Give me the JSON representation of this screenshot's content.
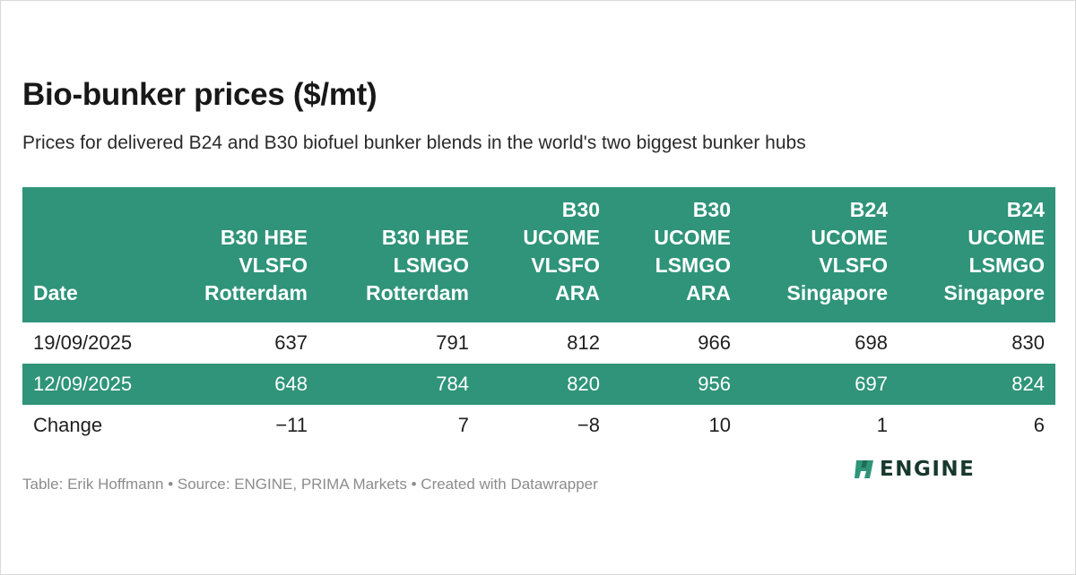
{
  "header": {
    "title": "Bio-bunker prices ($/mt)",
    "subtitle": "Prices for delivered B24 and B30 biofuel bunker blends in the world's two biggest bunker hubs"
  },
  "chart_data": {
    "type": "table",
    "columns": [
      {
        "lines": [
          "Date"
        ]
      },
      {
        "lines": [
          "B30 HBE",
          "VLSFO",
          "Rotterdam"
        ]
      },
      {
        "lines": [
          "B30 HBE",
          "LSMGO",
          "Rotterdam"
        ]
      },
      {
        "lines": [
          "B30",
          "UCOME",
          "VLSFO",
          "ARA"
        ]
      },
      {
        "lines": [
          "B30",
          "UCOME",
          "LSMGO",
          "ARA"
        ]
      },
      {
        "lines": [
          "B24",
          "UCOME",
          "VLSFO",
          "Singapore"
        ]
      },
      {
        "lines": [
          "B24",
          "UCOME",
          "LSMGO",
          "Singapore"
        ]
      }
    ],
    "rows": [
      {
        "label": "19/09/2025",
        "values": [
          "637",
          "791",
          "812",
          "966",
          "698",
          "830"
        ]
      },
      {
        "label": "12/09/2025",
        "values": [
          "648",
          "784",
          "820",
          "956",
          "697",
          "824"
        ]
      },
      {
        "label": "Change",
        "values": [
          "−11",
          "7",
          "−8",
          "10",
          "1",
          "6"
        ]
      }
    ],
    "header_color": "#2f9479",
    "stripe_color": "#2f9479"
  },
  "footer": {
    "credit": "Table: Erik Hoffmann • Source: ENGINE, PRIMA Markets • Created with Datawrapper"
  },
  "logo": {
    "text": "ENGINE",
    "icon": "engine-logo-icon"
  }
}
